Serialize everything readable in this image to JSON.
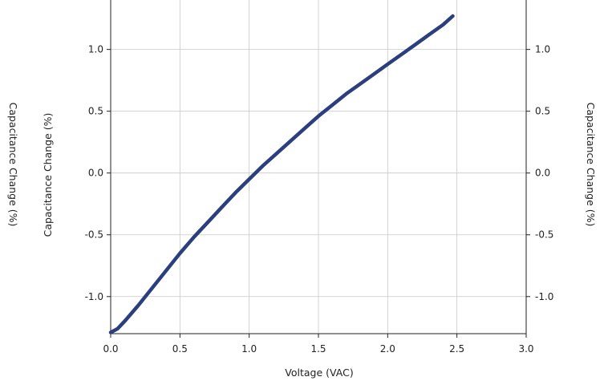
{
  "chart_data": {
    "type": "line",
    "title": "",
    "xlabel": "Voltage (VAC)",
    "ylabel": "Capacitance Change (%)",
    "ylabel_outer_left": "Capacitance Change (%)",
    "ylabel_right": "Capacitance Change (%)",
    "xlim": [
      0,
      3.0
    ],
    "ylim": [
      -1.3,
      1.4
    ],
    "x_ticks": [
      "0.0",
      "0.5",
      "1.0",
      "1.5",
      "2.0",
      "2.5",
      "3.0"
    ],
    "y_ticks": [
      "-1.0",
      "-0.5",
      "0.0",
      "0.5",
      "1.0"
    ],
    "y_ticks_right": [
      "-1.0",
      "-0.5",
      "0.0",
      "0.5",
      "1.0"
    ],
    "grid": true,
    "series": [
      {
        "color": "#2b3f7e",
        "x": [
          0.0,
          0.05,
          0.1,
          0.2,
          0.3,
          0.4,
          0.5,
          0.6,
          0.7,
          0.8,
          0.9,
          1.0,
          1.1,
          1.2,
          1.3,
          1.4,
          1.5,
          1.6,
          1.7,
          1.8,
          1.9,
          2.0,
          2.1,
          2.2,
          2.3,
          2.4,
          2.47
        ],
        "y": [
          -1.29,
          -1.26,
          -1.2,
          -1.07,
          -0.93,
          -0.79,
          -0.65,
          -0.52,
          -0.4,
          -0.28,
          -0.16,
          -0.05,
          0.06,
          0.16,
          0.26,
          0.36,
          0.46,
          0.55,
          0.64,
          0.72,
          0.8,
          0.88,
          0.96,
          1.04,
          1.12,
          1.2,
          1.27
        ]
      }
    ]
  }
}
